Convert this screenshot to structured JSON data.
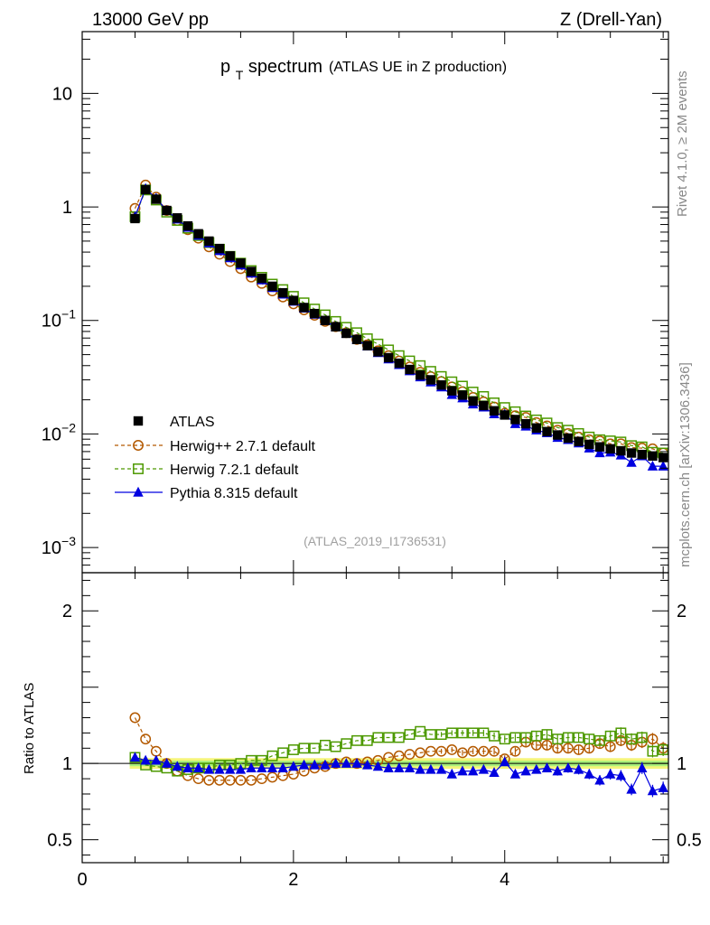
{
  "header": {
    "left": "13000 GeV pp",
    "right": "Z (Drell-Yan)"
  },
  "side": {
    "rivet": "Rivet 4.1.0, ≥ 2M events",
    "mcplots": "mcplots.cern.ch [arXiv:1306.3436]"
  },
  "chart_data": {
    "type": "scatter",
    "title_main": "p",
    "title_sub": "T",
    "title_word": " spectrum",
    "title_detail": "(ATLAS UE in Z production)",
    "analysis_ref": "(ATLAS_2019_I1736531)",
    "xlabel": "",
    "xlim": [
      0,
      5.55
    ],
    "upper_ylim": [
      0.0006,
      35
    ],
    "upper_ylog": true,
    "ratio_ylim": [
      0.35,
      2.25
    ],
    "ratio_ylabel": "Ratio to ATLAS",
    "x_ticks": [
      {
        "v": 0,
        "label": "0"
      },
      {
        "v": 2,
        "label": "2"
      },
      {
        "v": 4,
        "label": "4"
      }
    ],
    "upper_y_ticks": [
      {
        "v": 10,
        "base": "10",
        "exp": ""
      },
      {
        "v": 1,
        "base": "1",
        "exp": ""
      },
      {
        "v": 0.1,
        "base": "10",
        "exp": "−1"
      },
      {
        "v": 0.01,
        "base": "10",
        "exp": "−2"
      },
      {
        "v": 0.001,
        "base": "10",
        "exp": "−3"
      }
    ],
    "ratio_y_ticks": [
      {
        "v": 2,
        "label": "2"
      },
      {
        "v": 1,
        "label": "1"
      },
      {
        "v": 0.5,
        "label": "0.5"
      }
    ],
    "x": [
      0.5,
      0.6,
      0.7,
      0.8,
      0.9,
      1.0,
      1.1,
      1.2,
      1.3,
      1.4,
      1.5,
      1.6,
      1.7,
      1.8,
      1.9,
      2.0,
      2.1,
      2.2,
      2.3,
      2.4,
      2.5,
      2.6,
      2.7,
      2.8,
      2.9,
      3.0,
      3.1,
      3.2,
      3.3,
      3.4,
      3.5,
      3.6,
      3.7,
      3.8,
      3.9,
      4.0,
      4.1,
      4.2,
      4.3,
      4.4,
      4.5,
      4.6,
      4.7,
      4.8,
      4.9,
      5.0,
      5.1,
      5.2,
      5.3,
      5.4,
      5.5
    ],
    "series": [
      {
        "name": "ATLAS",
        "legend": "ATLAS",
        "color": "#000000",
        "marker": "square-filled",
        "values": [
          0.79,
          1.42,
          1.17,
          0.93,
          0.8,
          0.68,
          0.58,
          0.5,
          0.43,
          0.37,
          0.32,
          0.27,
          0.235,
          0.2,
          0.175,
          0.15,
          0.13,
          0.115,
          0.1,
          0.088,
          0.077,
          0.068,
          0.06,
          0.053,
          0.047,
          0.042,
          0.037,
          0.033,
          0.03,
          0.027,
          0.024,
          0.022,
          0.0195,
          0.0178,
          0.016,
          0.0147,
          0.0134,
          0.0123,
          0.0113,
          0.0105,
          0.0098,
          0.0092,
          0.0086,
          0.0081,
          0.0077,
          0.0074,
          0.0071,
          0.0068,
          0.0066,
          0.0064,
          0.0062
        ],
        "ratio": [
          1.0,
          1.0,
          1.0,
          1.0,
          1.0,
          1.0,
          1.0,
          1.0,
          1.0,
          1.0,
          1.0,
          1.0,
          1.0,
          1.0,
          1.0,
          1.0,
          1.0,
          1.0,
          1.0,
          1.0,
          1.0,
          1.0,
          1.0,
          1.0,
          1.0,
          1.0,
          1.0,
          1.0,
          1.0,
          1.0,
          1.0,
          1.0,
          1.0,
          1.0,
          1.0,
          1.0,
          1.0,
          1.0,
          1.0,
          1.0,
          1.0,
          1.0,
          1.0,
          1.0,
          1.0,
          1.0,
          1.0,
          1.0,
          1.0,
          1.0,
          1.0
        ]
      },
      {
        "name": "Herwig++ 2.7.1 default",
        "legend": "Herwig++ 2.7.1 default",
        "color": "#b35900",
        "marker": "circle-open",
        "values": [
          0.97,
          1.56,
          1.22,
          0.93,
          0.76,
          0.63,
          0.53,
          0.445,
          0.383,
          0.33,
          0.286,
          0.241,
          0.212,
          0.182,
          0.161,
          0.14,
          0.124,
          0.111,
          0.098,
          0.088,
          0.078,
          0.068,
          0.061,
          0.054,
          0.049,
          0.044,
          0.039,
          0.035,
          0.032,
          0.029,
          0.026,
          0.0236,
          0.021,
          0.0192,
          0.0173,
          0.0152,
          0.0145,
          0.014,
          0.0126,
          0.0118,
          0.0108,
          0.0101,
          0.0094,
          0.0089,
          0.0087,
          0.0082,
          0.0082,
          0.0076,
          0.0075,
          0.0074,
          0.0068
        ],
        "ratio": [
          1.3,
          1.16,
          1.08,
          1.0,
          0.95,
          0.92,
          0.9,
          0.89,
          0.89,
          0.89,
          0.89,
          0.89,
          0.9,
          0.91,
          0.92,
          0.93,
          0.95,
          0.97,
          0.98,
          1.0,
          1.01,
          1.0,
          1.01,
          1.02,
          1.04,
          1.05,
          1.06,
          1.07,
          1.08,
          1.08,
          1.09,
          1.07,
          1.08,
          1.08,
          1.08,
          1.03,
          1.08,
          1.14,
          1.12,
          1.12,
          1.1,
          1.1,
          1.09,
          1.1,
          1.13,
          1.11,
          1.15,
          1.12,
          1.14,
          1.16,
          1.1
        ]
      },
      {
        "name": "Herwig 7.2.1 default",
        "legend": "Herwig 7.2.1 default",
        "color": "#4d9900",
        "marker": "square-open",
        "values": [
          0.82,
          1.41,
          1.15,
          0.9,
          0.76,
          0.65,
          0.56,
          0.485,
          0.424,
          0.367,
          0.32,
          0.275,
          0.24,
          0.209,
          0.187,
          0.163,
          0.143,
          0.126,
          0.112,
          0.098,
          0.087,
          0.078,
          0.069,
          0.062,
          0.055,
          0.049,
          0.044,
          0.04,
          0.0356,
          0.0321,
          0.0288,
          0.0264,
          0.0234,
          0.0214,
          0.0188,
          0.0171,
          0.0157,
          0.0144,
          0.0133,
          0.0125,
          0.0114,
          0.0108,
          0.0101,
          0.0094,
          0.0089,
          0.0087,
          0.0085,
          0.0079,
          0.0077,
          0.0069,
          0.0068
        ],
        "ratio": [
          1.04,
          0.99,
          0.98,
          0.97,
          0.95,
          0.96,
          0.97,
          0.97,
          0.99,
          0.99,
          1.0,
          1.02,
          1.02,
          1.05,
          1.07,
          1.09,
          1.1,
          1.1,
          1.12,
          1.11,
          1.13,
          1.15,
          1.15,
          1.17,
          1.17,
          1.17,
          1.19,
          1.21,
          1.19,
          1.19,
          1.2,
          1.2,
          1.2,
          1.2,
          1.18,
          1.16,
          1.17,
          1.17,
          1.18,
          1.19,
          1.16,
          1.17,
          1.17,
          1.16,
          1.15,
          1.18,
          1.2,
          1.16,
          1.17,
          1.08,
          1.09
        ]
      },
      {
        "name": "Pythia 8.315 default",
        "legend": "Pythia 8.315 default",
        "color": "#0000e0",
        "marker": "triangle-filled",
        "values": [
          0.82,
          1.45,
          1.19,
          0.93,
          0.78,
          0.66,
          0.56,
          0.48,
          0.41,
          0.355,
          0.307,
          0.26,
          0.227,
          0.194,
          0.17,
          0.147,
          0.128,
          0.113,
          0.099,
          0.088,
          0.077,
          0.068,
          0.0594,
          0.0519,
          0.0456,
          0.0407,
          0.0359,
          0.0317,
          0.0286,
          0.0259,
          0.0222,
          0.0207,
          0.0183,
          0.0172,
          0.015,
          0.0149,
          0.0123,
          0.0117,
          0.0108,
          0.0102,
          0.0093,
          0.0089,
          0.0083,
          0.0075,
          0.0068,
          0.0069,
          0.0065,
          0.0056,
          0.0064,
          0.0052,
          0.0052
        ],
        "ratio": [
          1.04,
          1.02,
          1.02,
          1.0,
          0.98,
          0.97,
          0.97,
          0.96,
          0.96,
          0.96,
          0.96,
          0.97,
          0.97,
          0.97,
          0.97,
          0.98,
          0.99,
          0.99,
          0.99,
          1.0,
          1.0,
          1.0,
          0.99,
          0.98,
          0.97,
          0.97,
          0.97,
          0.96,
          0.96,
          0.96,
          0.93,
          0.95,
          0.95,
          0.96,
          0.94,
          1.01,
          0.93,
          0.95,
          0.96,
          0.97,
          0.95,
          0.97,
          0.96,
          0.93,
          0.89,
          0.93,
          0.92,
          0.83,
          0.97,
          0.82,
          0.84
        ]
      }
    ]
  }
}
